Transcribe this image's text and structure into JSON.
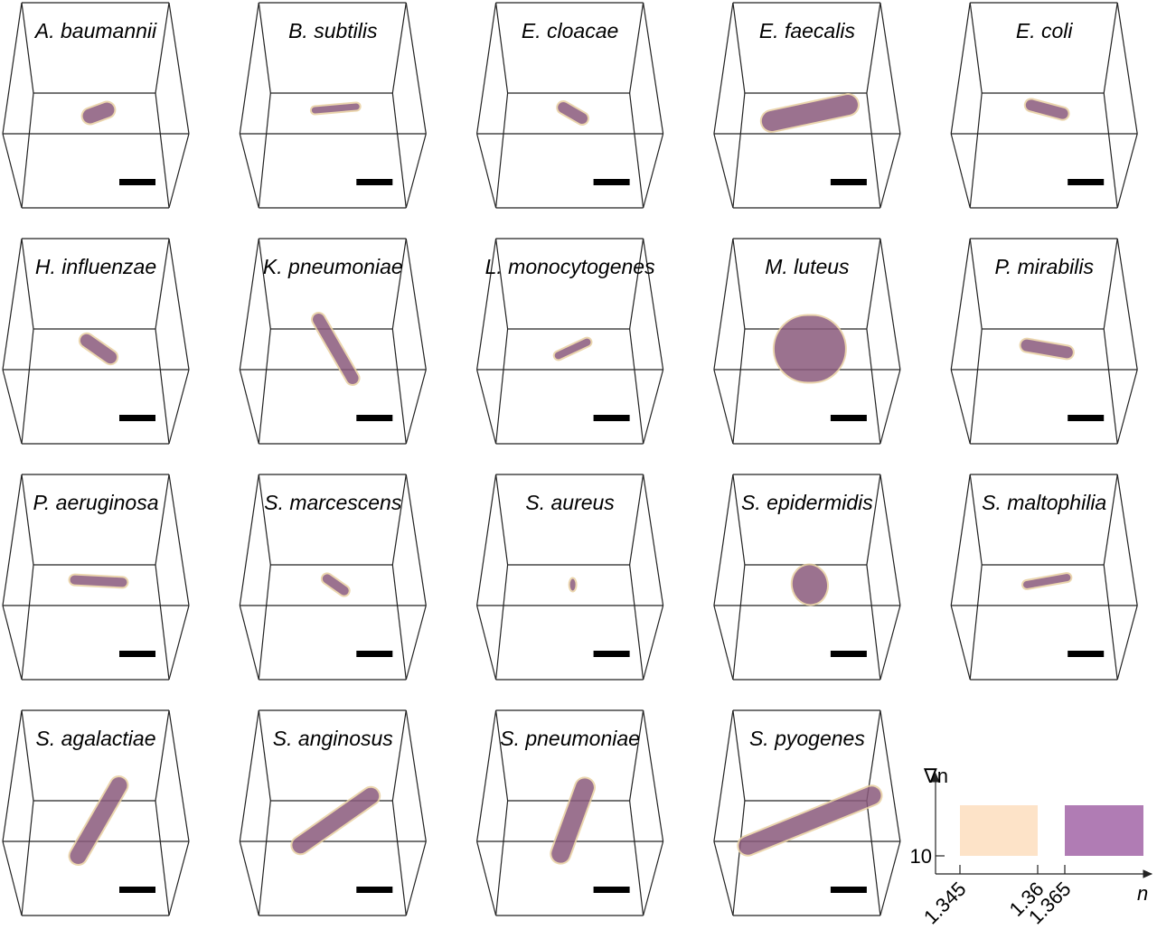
{
  "panels": [
    {
      "label": "A. baumannii"
    },
    {
      "label": "B. subtilis"
    },
    {
      "label": "E. cloacae"
    },
    {
      "label": "E. faecalis"
    },
    {
      "label": "E. coli"
    },
    {
      "label": "H. influenzae"
    },
    {
      "label": "K. pneumoniae"
    },
    {
      "label": "L. monocytogenes"
    },
    {
      "label": "M. luteus"
    },
    {
      "label": "P. mirabilis"
    },
    {
      "label": "P. aeruginosa"
    },
    {
      "label": "S. marcescens"
    },
    {
      "label": "S. aureus"
    },
    {
      "label": "S. epidermidis"
    },
    {
      "label": "S. maltophilia"
    },
    {
      "label": "S. agalactiae"
    },
    {
      "label": "S. anginosus"
    },
    {
      "label": "S. pneumoniae"
    },
    {
      "label": "S. pyogenes"
    }
  ],
  "legend": {
    "y_label": "∇n",
    "x_label": "n",
    "y_tick": "10",
    "x_ticks": [
      "1.345",
      "1.36",
      "1.365"
    ]
  }
}
